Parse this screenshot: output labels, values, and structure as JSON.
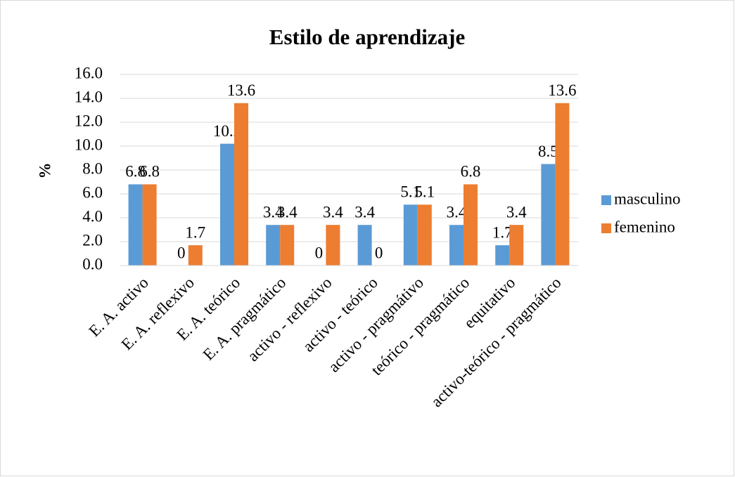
{
  "chart_data": {
    "type": "bar",
    "title": "Estilo de aprendizaje",
    "y_label": "%",
    "categories": [
      "E. A. activo",
      "E. A.  reflexivo",
      "E. A. teórico",
      "E. A. pragmático",
      "activo - reflexivo",
      "activo - teórico",
      "activo - pragmátivo",
      "teórico - pragmático",
      "equitativo",
      "activo-teórico - pragmático"
    ],
    "series": [
      {
        "name": "masculino",
        "color": "#5b9bd5",
        "values": [
          6.8,
          0,
          10.2,
          3.4,
          0,
          3.4,
          5.1,
          3.4,
          1.7,
          8.5
        ]
      },
      {
        "name": "femenino",
        "color": "#ed7d31",
        "values": [
          6.8,
          1.7,
          13.6,
          3.4,
          3.4,
          0,
          5.1,
          6.8,
          3.4,
          13.6
        ]
      }
    ],
    "ylim": [
      0,
      16
    ],
    "yticks": [
      {
        "value": 0,
        "label": "0.0"
      },
      {
        "value": 2,
        "label": "2.0"
      },
      {
        "value": 4,
        "label": "4.0"
      },
      {
        "value": 6,
        "label": "6.0"
      },
      {
        "value": 8,
        "label": "8.0"
      },
      {
        "value": 10,
        "label": "10.0"
      },
      {
        "value": 12,
        "label": "12.0"
      },
      {
        "value": 14,
        "label": "14.0"
      },
      {
        "value": 16,
        "label": "16.0"
      }
    ],
    "grid": true,
    "legend": "right"
  }
}
